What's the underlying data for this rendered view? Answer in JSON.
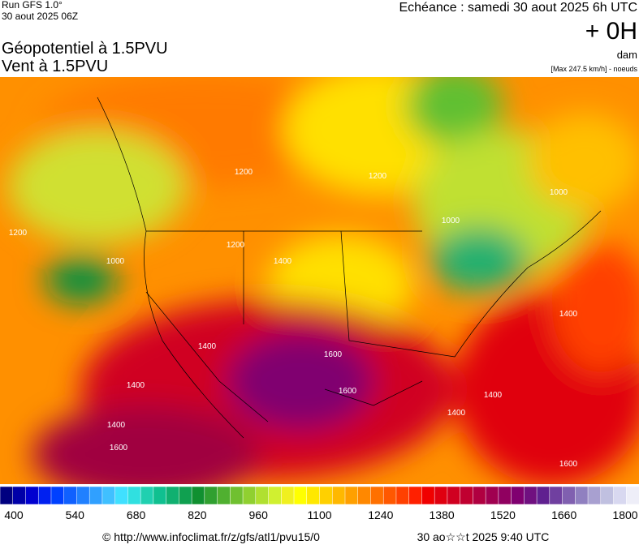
{
  "header": {
    "run": "Run GFS 1.0°",
    "run_date": "30 aout 2025 06Z",
    "echeance": "Echéance : samedi 30 aout 2025 6h UTC",
    "lead": "+ 0H",
    "title": "Géopotentiel à 1.5PVU",
    "subtitle": "Vent à 1.5PVU",
    "unit": "dam",
    "max_note": "[Max 247.5 km/h] - noeuds"
  },
  "map": {
    "contour_labels": [
      "1200",
      "1200",
      "1200",
      "1000",
      "1000",
      "1000",
      "1200",
      "1400",
      "1400",
      "1400",
      "1600",
      "1600",
      "1400",
      "1400",
      "1400",
      "1600",
      "1400",
      "1600"
    ]
  },
  "colorbar": {
    "labels": [
      "400",
      "540",
      "680",
      "820",
      "960",
      "1100",
      "1240",
      "1380",
      "1520",
      "1660",
      "1800"
    ],
    "colors": [
      "#000080",
      "#0000a8",
      "#0000d0",
      "#0020f0",
      "#0040ff",
      "#1060ff",
      "#2080ff",
      "#30a0ff",
      "#40c0ff",
      "#40e0ff",
      "#30e0e0",
      "#20d0b0",
      "#10c090",
      "#10b070",
      "#10a050",
      "#109030",
      "#30a030",
      "#50b030",
      "#70c030",
      "#90d030",
      "#b0e030",
      "#d0f030",
      "#f0f020",
      "#ffff00",
      "#ffe800",
      "#ffd000",
      "#ffb800",
      "#ffa000",
      "#ff8800",
      "#ff7000",
      "#ff5800",
      "#ff4000",
      "#ff2000",
      "#f00000",
      "#e00010",
      "#d00020",
      "#c00030",
      "#b00040",
      "#a00050",
      "#900060",
      "#800070",
      "#701080",
      "#602090",
      "#7040a0",
      "#8060b0",
      "#9080c0",
      "#a8a0d0",
      "#c0c0e0",
      "#d8d8f0",
      "#eeeef8"
    ]
  },
  "footer": {
    "url": "© http://www.infoclimat.fr/z/gfs/atl1/pvu15/0",
    "generated": "30 ao☆☆t 2025  9:40 UTC"
  }
}
